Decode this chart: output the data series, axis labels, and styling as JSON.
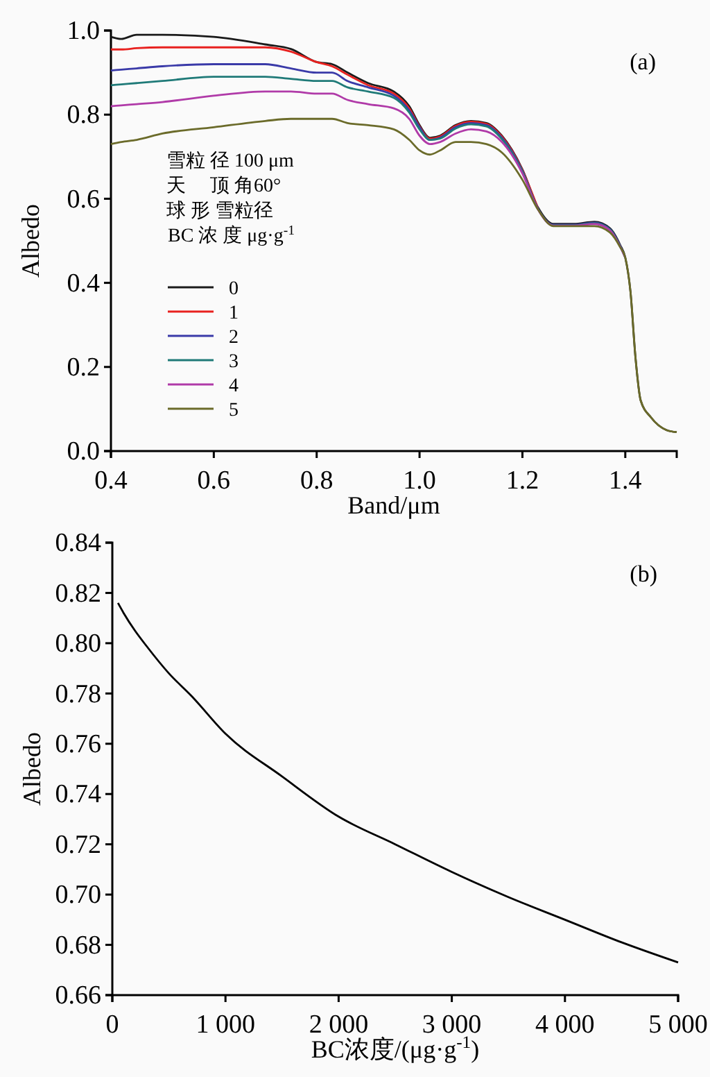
{
  "chart_data": [
    {
      "type": "line",
      "xlabel": "Band/μm",
      "ylabel": "Albedo",
      "annotations": [
        "(a)",
        "雪粒 径 100 μm",
        "天　 顶  角60°",
        "球 形  雪粒径"
      ],
      "legend_title": "BC  浓  度 μg·g$^{-1}$",
      "legend": "left",
      "xlim": [
        0.4,
        1.5
      ],
      "ylim": [
        0,
        1
      ],
      "xticks": [
        0.4,
        0.6,
        0.8,
        {
          "value": 1,
          "label": "1.0"
        },
        1.2,
        1.4
      ],
      "yticks": [
        {
          "value": 0,
          "label": "0.0"
        },
        0.2,
        0.4,
        0.6,
        0.8,
        {
          "value": 1,
          "label": "1.0"
        }
      ],
      "x": [
        0.4,
        0.42,
        0.45,
        0.5,
        0.6,
        0.7,
        0.75,
        0.8,
        0.83,
        0.86,
        0.9,
        0.95,
        0.98,
        1.0,
        1.02,
        1.04,
        1.07,
        1.1,
        1.13,
        1.16,
        1.2,
        1.23,
        1.26,
        1.3,
        1.34,
        1.37,
        1.39,
        1.4,
        1.41,
        1.42,
        1.43,
        1.45,
        1.48,
        1.5
      ],
      "series": [
        {
          "name": "0",
          "color": "#1a1a1a",
          "values": [
            0.985,
            0.98,
            0.99,
            0.99,
            0.985,
            0.967,
            0.956,
            0.925,
            0.92,
            0.9,
            0.875,
            0.855,
            0.82,
            0.775,
            0.745,
            0.75,
            0.775,
            0.785,
            0.78,
            0.75,
            0.67,
            0.58,
            0.54,
            0.54,
            0.545,
            0.53,
            0.49,
            0.46,
            0.38,
            0.22,
            0.12,
            0.08,
            0.05,
            0.045
          ]
        },
        {
          "name": "1",
          "color": "#e8211f",
          "values": [
            0.955,
            0.955,
            0.958,
            0.96,
            0.96,
            0.96,
            0.95,
            0.925,
            0.915,
            0.895,
            0.87,
            0.85,
            0.815,
            0.772,
            0.743,
            0.748,
            0.773,
            0.783,
            0.778,
            0.748,
            0.668,
            0.578,
            null,
            null,
            null,
            null,
            null,
            null,
            null,
            null,
            null,
            null,
            null,
            null
          ]
        },
        {
          "name": "2",
          "color": "#3a3aa8",
          "values": [
            0.905,
            0.907,
            0.91,
            0.915,
            0.92,
            0.92,
            0.91,
            0.9,
            0.9,
            0.88,
            0.865,
            0.845,
            0.81,
            0.77,
            0.74,
            0.745,
            0.77,
            0.78,
            0.775,
            0.745,
            0.666,
            0.577,
            0.538,
            0.538,
            0.543,
            0.528,
            0.488,
            0.46,
            null,
            null,
            null,
            null,
            null,
            null
          ]
        },
        {
          "name": "3",
          "color": "#1f7a78",
          "values": [
            0.87,
            0.872,
            0.875,
            0.88,
            0.89,
            0.89,
            0.885,
            0.88,
            0.88,
            0.865,
            0.855,
            0.84,
            0.805,
            0.765,
            0.74,
            0.743,
            0.767,
            0.777,
            0.772,
            0.742,
            0.664,
            0.576,
            0.537,
            0.537,
            0.542,
            0.527,
            0.487,
            0.46,
            null,
            null,
            null,
            null,
            null,
            null
          ]
        },
        {
          "name": "4",
          "color": "#b03aa8",
          "values": [
            0.82,
            0.822,
            0.825,
            0.83,
            0.845,
            0.855,
            0.855,
            0.85,
            0.85,
            0.835,
            0.825,
            0.815,
            0.79,
            0.75,
            0.73,
            0.735,
            0.755,
            0.765,
            0.76,
            0.735,
            0.66,
            0.575,
            0.536,
            0.536,
            0.54,
            0.525,
            0.486,
            0.46,
            null,
            null,
            null,
            null,
            null,
            null
          ]
        },
        {
          "name": "5",
          "color": "#6b6b2a",
          "values": [
            0.73,
            0.735,
            0.74,
            0.755,
            0.77,
            0.785,
            0.79,
            0.79,
            0.79,
            0.78,
            0.775,
            0.765,
            0.74,
            0.715,
            0.705,
            0.715,
            0.735,
            0.735,
            0.73,
            0.71,
            0.645,
            0.575,
            0.535,
            0.535,
            0.535,
            0.52,
            0.485,
            0.46,
            0.38,
            0.22,
            0.12,
            0.08,
            0.05,
            0.045
          ]
        }
      ]
    },
    {
      "type": "line",
      "xlabel": "BC浓度/(μg·g$^{-1}$)",
      "ylabel": "Albedo",
      "annotations": [
        "(b)"
      ],
      "xlim": [
        0,
        5000
      ],
      "ylim": [
        0.66,
        0.84
      ],
      "xticks": [
        0,
        {
          "value": 1000,
          "label": "1 000"
        },
        {
          "value": 2000,
          "label": "2 000"
        },
        {
          "value": 3000,
          "label": "3 000"
        },
        {
          "value": 4000,
          "label": "4 000"
        },
        {
          "value": 5000,
          "label": "5 000"
        }
      ],
      "yticks": [
        0.66,
        0.68,
        {
          "value": 0.7,
          "label": "0.70"
        },
        0.72,
        0.74,
        0.76,
        0.78,
        {
          "value": 0.8,
          "label": "0.80"
        },
        0.82,
        0.84
      ],
      "x": [
        50,
        100,
        200,
        300,
        500,
        700,
        1000,
        1500,
        2000,
        2500,
        3000,
        3500,
        4000,
        4500,
        5000
      ],
      "color": "#000000",
      "values": [
        0.816,
        0.812,
        0.805,
        0.799,
        0.788,
        0.779,
        0.764,
        0.747,
        0.731,
        0.72,
        0.709,
        0.699,
        0.69,
        0.681,
        0.673
      ]
    }
  ]
}
